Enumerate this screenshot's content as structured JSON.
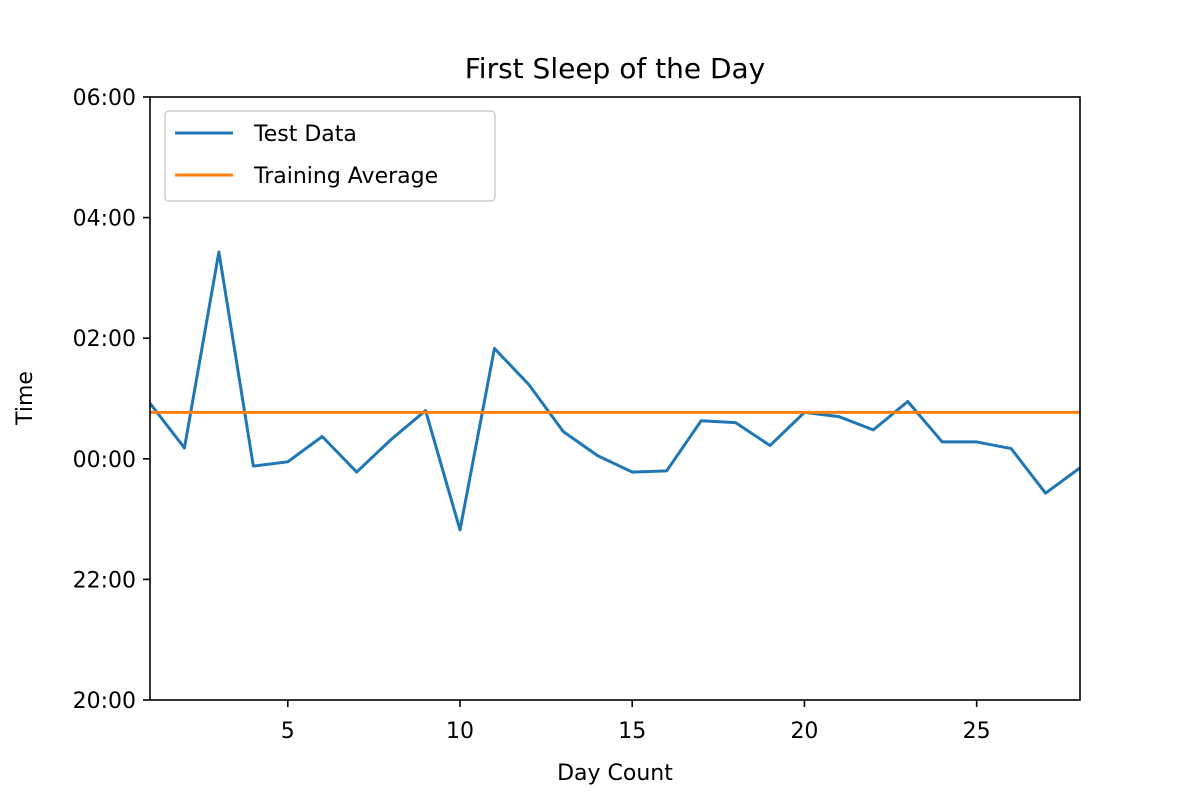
{
  "chart_data": {
    "type": "line",
    "title": "First Sleep of the Day",
    "xlabel": "Day Count",
    "ylabel": "Time",
    "xlim": [
      1,
      28
    ],
    "ylim_hours_from_midnight": [
      -4,
      6
    ],
    "x_ticks": [
      5,
      10,
      15,
      20,
      25
    ],
    "y_ticks": [
      {
        "value": -4,
        "label": "20:00"
      },
      {
        "value": -2,
        "label": "22:00"
      },
      {
        "value": 0,
        "label": "00:00"
      },
      {
        "value": 2,
        "label": "02:00"
      },
      {
        "value": 4,
        "label": "04:00"
      },
      {
        "value": 6,
        "label": "06:00"
      }
    ],
    "grid": false,
    "legend_position": "top-left",
    "series": [
      {
        "name": "Test Data",
        "color": "#1f77b4",
        "x": [
          1,
          2,
          3,
          4,
          5,
          6,
          7,
          8,
          9,
          10,
          11,
          12,
          13,
          14,
          15,
          16,
          17,
          18,
          19,
          20,
          21,
          22,
          23,
          24,
          25,
          26,
          27,
          28
        ],
        "y": [
          0.92,
          0.18,
          3.43,
          -0.12,
          -0.05,
          0.37,
          -0.22,
          0.32,
          0.8,
          -1.18,
          1.83,
          1.23,
          0.45,
          0.05,
          -0.22,
          -0.2,
          0.63,
          0.6,
          0.22,
          0.77,
          0.7,
          0.48,
          0.95,
          0.28,
          0.28,
          0.17,
          -0.57,
          -0.15
        ]
      },
      {
        "name": "Training Average",
        "color": "#ff7f0e",
        "x": [
          1,
          28
        ],
        "y": [
          0.77,
          0.77
        ]
      }
    ]
  }
}
